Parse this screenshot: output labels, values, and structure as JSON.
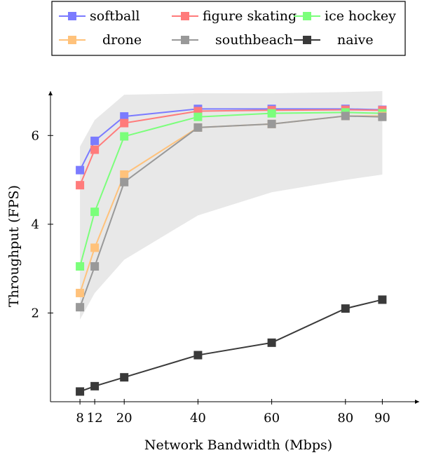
{
  "chart_data": {
    "type": "line",
    "title": "",
    "xlabel": "Network Bandwidth (Mbps)",
    "ylabel": "Throughput (FPS)",
    "x": [
      8,
      12,
      20,
      40,
      60,
      80,
      90
    ],
    "x_ticks": [
      "8",
      "12",
      "20",
      "40",
      "60",
      "80",
      "90"
    ],
    "y_ticks": [
      2,
      4,
      6
    ],
    "xlim": [
      0,
      100
    ],
    "ylim": [
      0,
      7.0
    ],
    "grid": false,
    "legend_position": "top",
    "band": {
      "color": "#e8e8e8",
      "upper": [
        5.75,
        6.35,
        6.92,
        6.95,
        6.95,
        6.98,
        7.0
      ],
      "lower": [
        1.85,
        2.45,
        3.2,
        4.2,
        4.72,
        5.0,
        5.12
      ]
    },
    "series": [
      {
        "name": "softball",
        "color": "#7b7bff",
        "values": [
          5.22,
          5.88,
          6.43,
          6.6,
          6.6,
          6.6,
          6.58
        ]
      },
      {
        "name": "figure skating",
        "color": "#ff7b7b",
        "values": [
          4.88,
          5.68,
          6.28,
          6.55,
          6.57,
          6.58,
          6.57
        ]
      },
      {
        "name": "ice hockey",
        "color": "#7bff7b",
        "values": [
          3.05,
          4.28,
          5.98,
          6.42,
          6.5,
          6.52,
          6.5
        ]
      },
      {
        "name": "drone",
        "color": "#ffc27b",
        "values": [
          2.45,
          3.47,
          5.12,
          6.18,
          6.26,
          6.44,
          6.44
        ]
      },
      {
        "name": "southbeach",
        "color": "#999999",
        "values": [
          2.13,
          3.05,
          4.95,
          6.18,
          6.26,
          6.44,
          6.42
        ]
      },
      {
        "name": "naive",
        "color": "#3a3a3a",
        "values": [
          0.23,
          0.35,
          0.55,
          1.05,
          1.33,
          2.1,
          2.3
        ]
      }
    ]
  }
}
